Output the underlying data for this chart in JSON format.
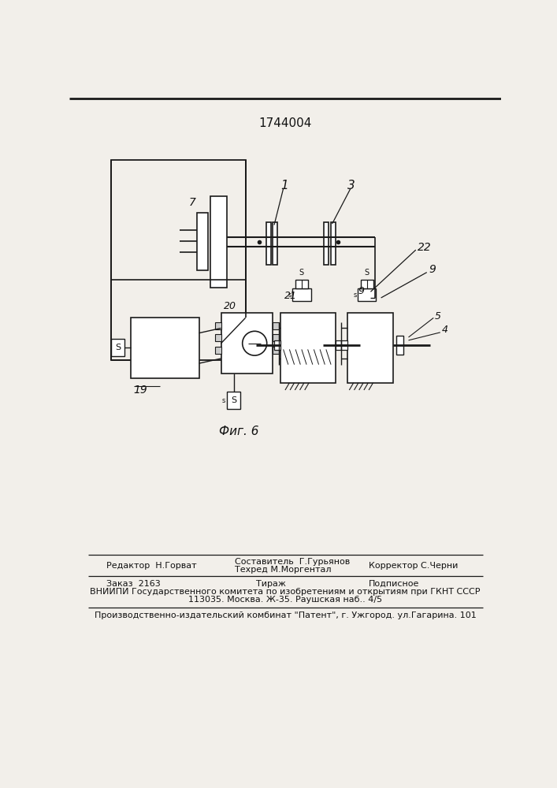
{
  "patent_number": "1744004",
  "fig_label": "Фиг. 6",
  "background_color": "#f2efea",
  "border_color": "#222222",
  "text_color": "#111111",
  "footer_line1_left": "Редактор  Н.Горват",
  "footer_line1_center_top": "Составитель  Г.Гурьянов",
  "footer_line1_center_bot": "Техред М.Моргентал",
  "footer_line1_right": "Корректор С.Черни",
  "footer_line2_left": "Заказ  2163",
  "footer_line2_center": "Тираж",
  "footer_line2_right": "Подписное",
  "footer_line3": "ВНИИПИ Государственного комитета по изобретениям и открытиям при ГКНТ СССР",
  "footer_line4": "113035. Москва. Ж-35. Раушская наб.. 4/5",
  "footer_line5": "Производственно-издательский комбинат \"Патент\", г. Ужгород. ул.Гагарина. 101"
}
